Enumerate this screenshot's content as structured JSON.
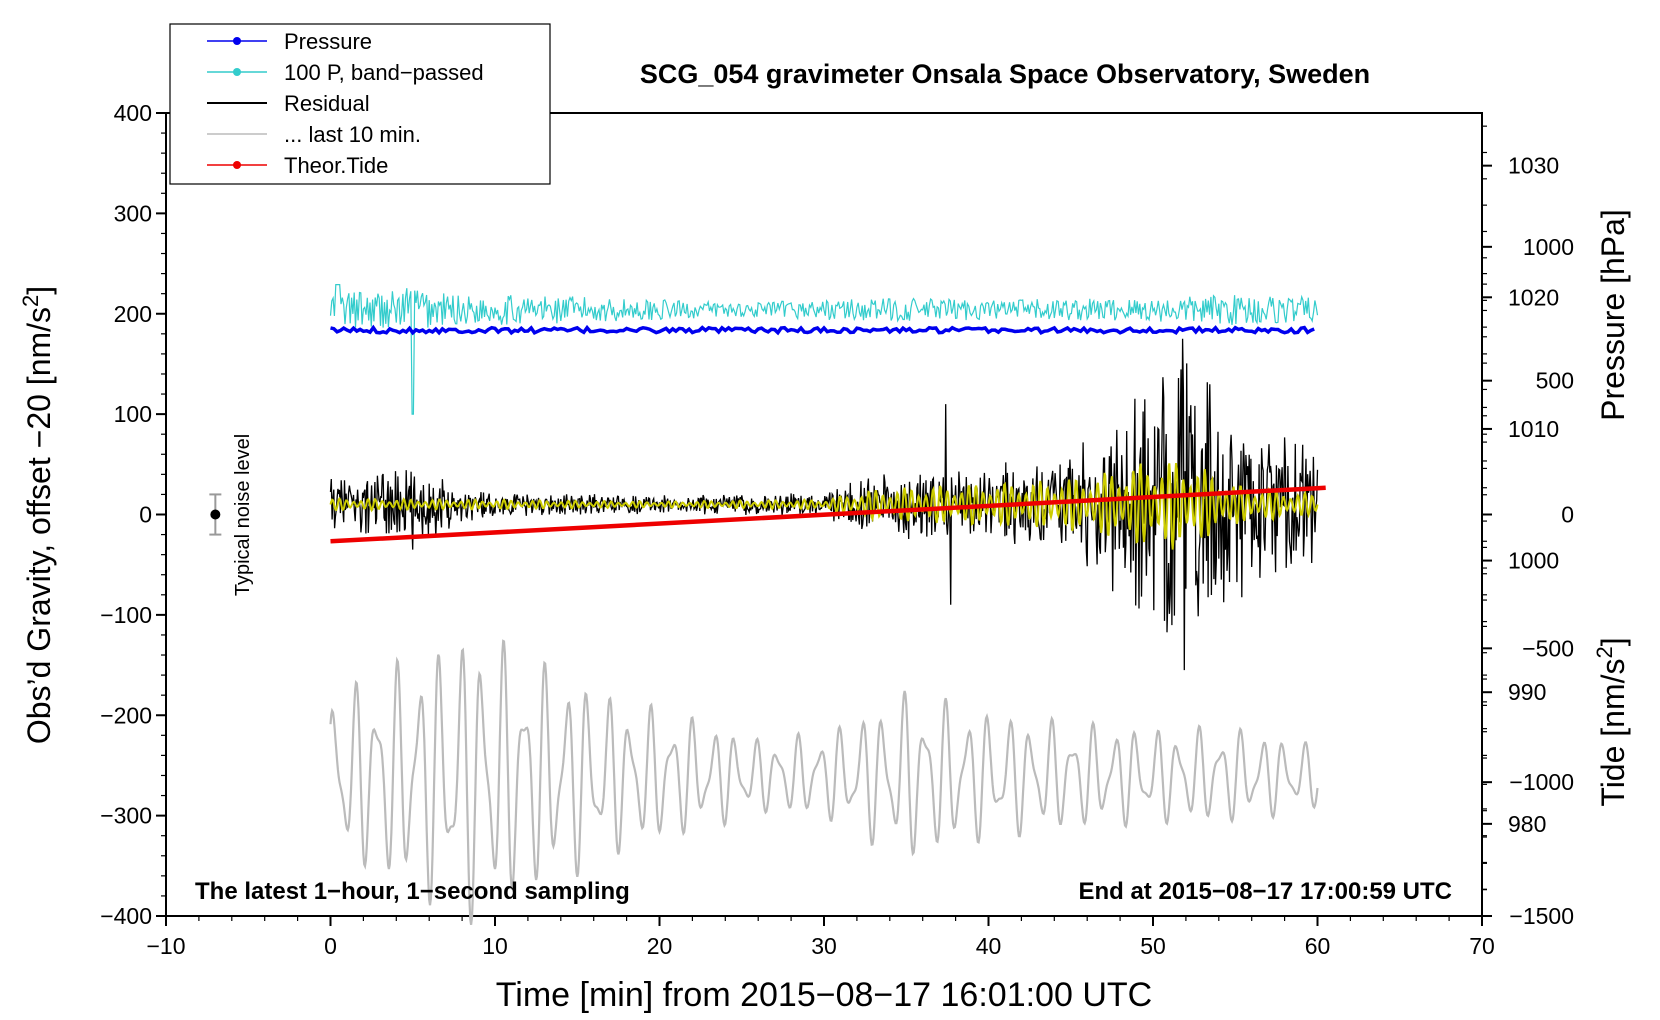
{
  "chart_data": {
    "type": "line",
    "title": "SCG_054 gravimeter Onsala Space Observatory, Sweden",
    "xlabel": "Time [min] from 2015−08−17 16:01:00 UTC",
    "ylabel_left": "Obs’d Gravity, offset −20 [nm/s²]",
    "ylabel_pressure": "Pressure [hPa]",
    "ylabel_tide": "Tide [nm/s²]",
    "xlim": [
      -10,
      70
    ],
    "ylim": [
      -400,
      400
    ],
    "pressure_lim": [
      973,
      1034
    ],
    "tide_lim": [
      -1500,
      1500
    ],
    "x_ticks": [
      -10,
      0,
      10,
      20,
      30,
      40,
      50,
      60,
      70
    ],
    "x_tick_labels": [
      "−10",
      "0",
      "10",
      "20",
      "30",
      "40",
      "50",
      "60",
      "70"
    ],
    "y_ticks": [
      400,
      300,
      200,
      100,
      0,
      -100,
      -200,
      -300,
      -400
    ],
    "y_tick_labels": [
      "400",
      "300",
      "200",
      "100",
      "0",
      "−100",
      "−200",
      "−300",
      "−400"
    ],
    "pressure_ticks": [
      1030,
      1020,
      1010,
      1000,
      990,
      980
    ],
    "pressure_tick_labels": [
      "1030",
      "1020",
      "1010",
      "1000",
      "990",
      "980"
    ],
    "tide_ticks": [
      1000,
      500,
      0,
      -500,
      -1000,
      -1500
    ],
    "tide_tick_labels": [
      "1000",
      "500",
      "0",
      "−500",
      "−1000",
      "−1500"
    ],
    "legend": [
      {
        "label": "Pressure",
        "color": "#0000ee",
        "marker": true
      },
      {
        "label": "100 P, band−passed",
        "color": "#33cccc",
        "marker": true
      },
      {
        "label": "Residual",
        "color": "#000000",
        "marker": false
      },
      {
        "label": "... last 10 min.",
        "color": "#bbbbbb",
        "marker": false
      },
      {
        "label": "Theor.Tide",
        "color": "#ee0000",
        "marker": true
      }
    ],
    "annotations": {
      "bottom_left": "The latest 1−hour, 1−second sampling",
      "bottom_right": "End at 2015−08−17 17:00:59 UTC",
      "noise_label": "Typical noise level"
    },
    "noise_bar": {
      "x": -7,
      "y": 0,
      "half_range": 20
    },
    "series": [
      {
        "name": "Pressure",
        "axis": "pressure",
        "color": "#0000ee",
        "x_range": [
          0,
          60
        ],
        "level": 1017.5
      },
      {
        "name": "100 P, band−passed",
        "axis": "left",
        "color": "#33cccc",
        "x_range": [
          0,
          60
        ],
        "center": 204,
        "envelope_x": [
          0,
          2,
          4,
          5,
          6,
          8,
          12,
          20,
          25,
          30,
          35,
          40,
          50,
          56,
          60
        ],
        "envelope_a": [
          20,
          18,
          20,
          28,
          20,
          15,
          15,
          10,
          7,
          10,
          12,
          10,
          12,
          16,
          12
        ]
      },
      {
        "name": "Residual",
        "axis": "left",
        "color": "#000000",
        "x_range": [
          0,
          60
        ],
        "center": 10,
        "envelope_x": [
          0,
          3,
          6,
          8,
          10,
          20,
          30,
          32,
          35,
          38,
          42,
          45,
          48,
          50,
          52,
          54,
          56,
          58,
          60
        ],
        "envelope_a": [
          22,
          30,
          30,
          15,
          10,
          8,
          10,
          25,
          30,
          28,
          40,
          45,
          80,
          110,
          130,
          100,
          70,
          60,
          55
        ],
        "spikes": [
          [
            5,
            -45
          ],
          [
            37.4,
            100
          ],
          [
            37.7,
            -100
          ],
          [
            51.8,
            165
          ],
          [
            51.9,
            -165
          ]
        ]
      },
      {
        "name": "Residual (smoothed)",
        "axis": "left",
        "color": "#cccc00",
        "x_range": [
          0,
          60
        ],
        "center": 10,
        "envelope_x": [
          0,
          8,
          20,
          30,
          33,
          38,
          42,
          46,
          50,
          52,
          55,
          60
        ],
        "envelope_a": [
          6,
          5,
          3,
          5,
          15,
          20,
          22,
          28,
          45,
          45,
          20,
          10
        ]
      },
      {
        "name": "... last 10 min.",
        "axis": "left",
        "color": "#bbbbbb",
        "x_range": [
          0,
          60
        ],
        "center": -260,
        "envelope_x": [
          0,
          2,
          6,
          9,
          12,
          14,
          18,
          22,
          26,
          30,
          35,
          40,
          45,
          50,
          55,
          60
        ],
        "envelope_a": [
          80,
          90,
          120,
          140,
          110,
          100,
          70,
          55,
          35,
          40,
          80,
          60,
          50,
          45,
          45,
          30
        ]
      },
      {
        "name": "Theor.Tide",
        "axis": "tide",
        "color": "#ee0000",
        "x": [
          0,
          60.5
        ],
        "values": [
          -100,
          100
        ]
      }
    ]
  }
}
